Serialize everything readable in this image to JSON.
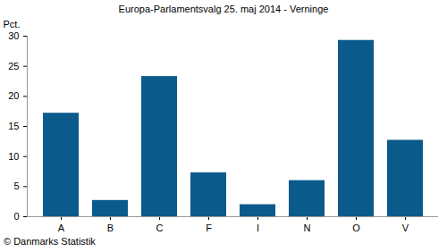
{
  "chart_data": {
    "type": "bar",
    "title": "Europa-Parlamentsvalg 25. maj 2014 - Verninge",
    "y_label": "Pct.",
    "caption": "© Danmarks Statistik",
    "categories": [
      "A",
      "B",
      "C",
      "F",
      "I",
      "N",
      "O",
      "V"
    ],
    "values": [
      17.2,
      2.7,
      23.3,
      7.3,
      2.0,
      6.0,
      29.3,
      12.7
    ],
    "color": "#0b5a8c",
    "ylim": [
      0,
      30
    ],
    "yticks": [
      0,
      5,
      10,
      15,
      20,
      25,
      30
    ],
    "grid": false
  }
}
